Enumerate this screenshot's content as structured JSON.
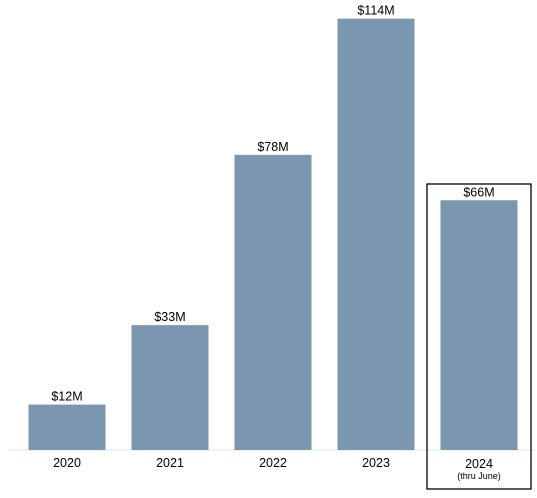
{
  "chart_data": {
    "type": "bar",
    "categories": [
      "2020",
      "2021",
      "2022",
      "2023",
      "2024"
    ],
    "category_sublabels": [
      "",
      "",
      "",
      "",
      "(thru June)"
    ],
    "values": [
      12,
      33,
      78,
      114,
      66
    ],
    "data_labels": [
      "$12M",
      "$33M",
      "$78M",
      "$114M",
      "$66M"
    ],
    "highlighted_category": "2024",
    "bar_color": "#7a97af",
    "title": "",
    "xlabel": "",
    "ylabel": "",
    "ylim": [
      0,
      120
    ],
    "grid": false,
    "legend": "none"
  }
}
